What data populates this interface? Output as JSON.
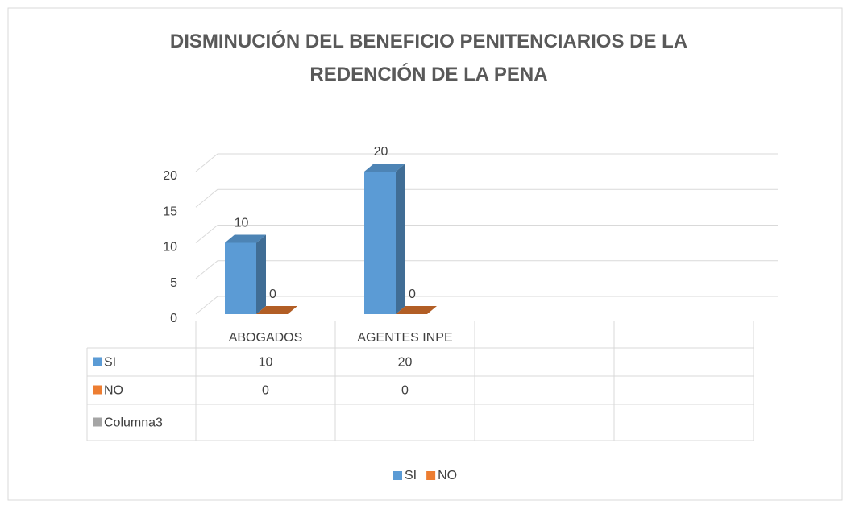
{
  "chart_data": {
    "type": "bar3d",
    "title": "DISMINUCIÓN DEL BENEFICIO PENITENCIARIOS DE LA REDENCIÓN DE LA PENA",
    "categories": [
      "ABOGADOS",
      "AGENTES INPE",
      null,
      null
    ],
    "series": [
      {
        "name": "SI",
        "color": "#5b9bd5",
        "values": [
          10,
          20,
          null,
          null
        ],
        "in_legend": true
      },
      {
        "name": "NO",
        "color": "#ed7d31",
        "values": [
          0,
          0,
          null,
          null
        ],
        "in_legend": true
      },
      {
        "name": "Columna3",
        "color": "#a5a5a5",
        "values": [
          null,
          null,
          null,
          null
        ],
        "in_legend": false
      }
    ],
    "ylim": [
      0,
      20
    ],
    "yticks": [
      0,
      5,
      10,
      15,
      20
    ],
    "grid": true,
    "data_table": true,
    "legend": "bottom"
  }
}
